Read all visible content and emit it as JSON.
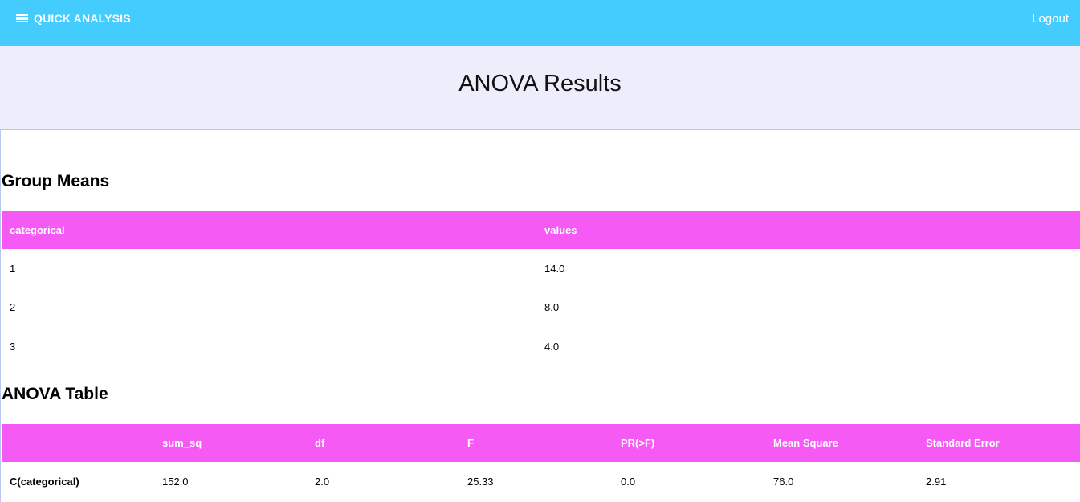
{
  "navbar": {
    "brand": "QUICK ANALYSIS",
    "brand_icon": "hamburger-menu-icon",
    "logout": "Logout",
    "color": "#44ccff"
  },
  "hero": {
    "title": "ANOVA Results"
  },
  "group_means": {
    "title": "Group Means",
    "columns": [
      "categorical",
      "values"
    ],
    "rows": [
      [
        "1",
        "14.0"
      ],
      [
        "2",
        "8.0"
      ],
      [
        "3",
        "4.0"
      ]
    ]
  },
  "anova_table": {
    "title": "ANOVA Table",
    "columns": [
      "",
      "sum_sq",
      "df",
      "F",
      "PR(>F)",
      "Mean Square",
      "Standard Error"
    ],
    "rows": [
      [
        "C(categorical)",
        "152.0",
        "2.0",
        "25.33",
        "0.0",
        "76.0",
        "2.91"
      ]
    ]
  },
  "colors": {
    "header_bg": "#f55af5",
    "hero_bg": "#eeedfc"
  }
}
